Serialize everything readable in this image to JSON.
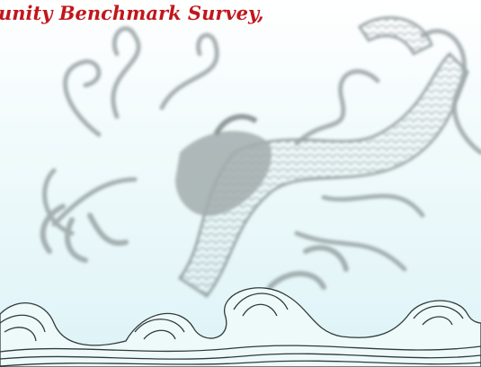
{
  "heading": {
    "text": "unity Benchmark Survey,"
  }
}
